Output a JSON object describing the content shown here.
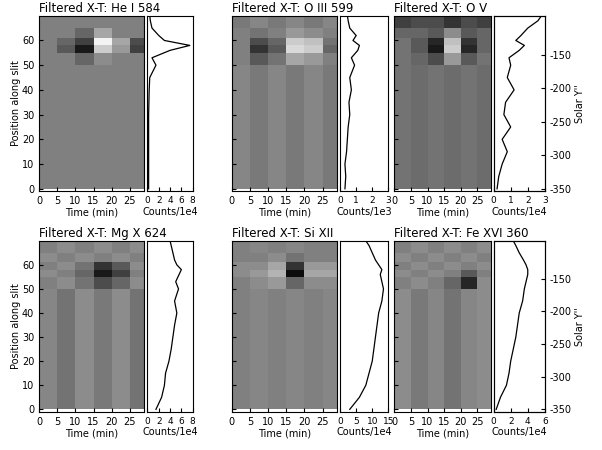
{
  "chart_data": [
    {
      "type": "heatmap",
      "title": "Filtered X-T: He I 584",
      "xlabel": "Time (min)",
      "ylabel": "Position along slit",
      "xlim": [
        0,
        29
      ],
      "xticks": [
        0,
        5,
        10,
        15,
        20,
        25
      ],
      "ylim": [
        -1,
        70
      ],
      "yticks": [
        0,
        10,
        20,
        30,
        40,
        50,
        60
      ],
      "x_edges": [
        0,
        5,
        10,
        15,
        20,
        25,
        29
      ],
      "y_edges": [
        0,
        50,
        55,
        58,
        61,
        65,
        70
      ],
      "cells_range": [
        -1,
        1
      ],
      "cells": [
        [
          0,
          0,
          0,
          0,
          0,
          0
        ],
        [
          0,
          0,
          -0.2,
          0.1,
          0,
          0
        ],
        [
          0,
          -0.3,
          -0.8,
          0.6,
          0.2,
          -0.5
        ],
        [
          0,
          -0.2,
          -0.5,
          0.9,
          0.3,
          -0.4
        ],
        [
          0,
          0,
          -0.2,
          0.3,
          0,
          0
        ],
        [
          0,
          0,
          0,
          0,
          0,
          0
        ]
      ],
      "profile": {
        "type": "line",
        "xlabel": "Counts/1e4",
        "xlim": [
          0,
          8
        ],
        "xticks": [
          0,
          2,
          4,
          6,
          8
        ],
        "y": [
          0,
          5,
          10,
          15,
          20,
          25,
          30,
          35,
          40,
          45,
          50,
          53,
          56,
          58,
          60,
          62,
          65,
          68,
          70
        ],
        "values": [
          0.2,
          0.2,
          0.2,
          0.2,
          0.2,
          0.2,
          0.2,
          0.25,
          0.3,
          0.4,
          1.5,
          0.8,
          4,
          7.5,
          3,
          2,
          0.8,
          0.5,
          0.4
        ]
      }
    },
    {
      "type": "heatmap",
      "title": "Filtered X-T: O III 599",
      "xlabel": "Time (min)",
      "tick_labels": "x",
      "xlim": [
        0,
        29
      ],
      "xticks": [
        0,
        5,
        10,
        15,
        20,
        25
      ],
      "ylim": [
        -1,
        70
      ],
      "yticks": [
        0,
        10,
        20,
        30,
        40,
        50,
        60
      ],
      "x_edges": [
        0,
        5,
        10,
        15,
        20,
        25,
        29
      ],
      "y_edges": [
        0,
        50,
        55,
        58,
        61,
        65,
        70
      ],
      "cells_range": [
        -1,
        1
      ],
      "cells": [
        [
          0.05,
          -0.05,
          0.05,
          -0.05,
          0.05,
          -0.05
        ],
        [
          0,
          -0.3,
          -0.1,
          0.3,
          0.2,
          0
        ],
        [
          0,
          -0.6,
          -0.3,
          0.7,
          0.6,
          -0.2
        ],
        [
          0,
          -0.4,
          -0.2,
          0.6,
          0.5,
          -0.1
        ],
        [
          0,
          -0.1,
          0,
          0.2,
          0.1,
          0
        ],
        [
          -0.05,
          0.05,
          -0.05,
          0.05,
          -0.05,
          0.05
        ]
      ],
      "profile": {
        "type": "line",
        "xlabel": "Counts/1e3",
        "xlim": [
          0,
          3
        ],
        "xticks": [
          0,
          1,
          2,
          3
        ],
        "y": [
          0,
          5,
          10,
          15,
          20,
          25,
          30,
          35,
          40,
          45,
          50,
          53,
          56,
          58,
          60,
          62,
          65,
          68,
          70
        ],
        "values": [
          0.3,
          0.35,
          0.3,
          0.4,
          0.45,
          0.5,
          0.6,
          0.55,
          0.7,
          0.6,
          0.9,
          0.7,
          1.1,
          1.2,
          0.8,
          1.0,
          0.6,
          0.5,
          0.45
        ]
      }
    },
    {
      "type": "heatmap",
      "title": "Filtered X-T: O V",
      "xlabel": "Time (min)",
      "tick_labels": "x",
      "xlim": [
        0,
        29
      ],
      "xticks": [
        0,
        5,
        10,
        15,
        20,
        25
      ],
      "ylim": [
        -1,
        70
      ],
      "yticks": [
        0,
        10,
        20,
        30,
        40,
        50,
        60
      ],
      "x_edges": [
        0,
        5,
        10,
        15,
        20,
        25,
        29
      ],
      "y_edges": [
        0,
        50,
        55,
        58,
        61,
        65,
        70
      ],
      "cells_range": [
        -1,
        1
      ],
      "cells": [
        [
          -0.1,
          -0.15,
          -0.1,
          -0.15,
          -0.1,
          -0.15
        ],
        [
          -0.1,
          -0.2,
          -0.4,
          0.2,
          -0.3,
          -0.1
        ],
        [
          -0.1,
          -0.3,
          -0.8,
          0.6,
          -0.7,
          -0.2
        ],
        [
          -0.1,
          -0.3,
          -0.7,
          0.5,
          -0.6,
          -0.2
        ],
        [
          -0.2,
          -0.2,
          -0.3,
          0.1,
          -0.3,
          -0.2
        ],
        [
          -0.5,
          -0.4,
          -0.4,
          -0.6,
          -0.4,
          -0.5
        ]
      ],
      "profile": {
        "type": "line",
        "xlabel": "Counts/1e4",
        "xlim": [
          0,
          3
        ],
        "xticks": [
          0,
          1,
          2,
          3
        ],
        "y": [
          0,
          5,
          10,
          15,
          20,
          25,
          30,
          35,
          40,
          45,
          50,
          53,
          56,
          58,
          60,
          62,
          65,
          68,
          70
        ],
        "values": [
          0.2,
          0.3,
          0.5,
          0.8,
          0.5,
          1.0,
          0.6,
          0.7,
          1.2,
          0.8,
          1.0,
          0.9,
          1.5,
          1.8,
          1.3,
          1.6,
          2.0,
          2.6,
          2.8
        ]
      },
      "y2label": "Solar Y''",
      "y2lim": [
        -354,
        -92
      ],
      "y2ticks": [
        -150,
        -200,
        -250,
        -300,
        -350
      ]
    },
    {
      "type": "heatmap",
      "title": "Filtered X-T: Mg X 624",
      "xlabel": "Time (min)",
      "ylabel": "Position along slit",
      "xlim": [
        0,
        29
      ],
      "xticks": [
        0,
        5,
        10,
        15,
        20,
        25
      ],
      "ylim": [
        -1,
        70
      ],
      "yticks": [
        0,
        10,
        20,
        30,
        40,
        50,
        60
      ],
      "x_edges": [
        0,
        5,
        10,
        15,
        20,
        25,
        29
      ],
      "y_edges": [
        0,
        50,
        55,
        58,
        61,
        65,
        70
      ],
      "cells_range": [
        -1,
        1
      ],
      "cells": [
        [
          0.05,
          -0.1,
          0.1,
          -0.05,
          0.1,
          -0.1
        ],
        [
          0,
          0.1,
          -0.1,
          -0.4,
          -0.2,
          0.1
        ],
        [
          0.1,
          0,
          -0.2,
          -0.8,
          -0.5,
          0
        ],
        [
          0,
          0.1,
          -0.1,
          -0.6,
          -0.3,
          0.1
        ],
        [
          0.1,
          0,
          0.1,
          0,
          0.1,
          0
        ],
        [
          0,
          0.1,
          0,
          0.1,
          0,
          0.1
        ]
      ],
      "profile": {
        "type": "line",
        "xlabel": "Counts/1e4",
        "xlim": [
          0,
          8
        ],
        "xticks": [
          0,
          2,
          4,
          6,
          8
        ],
        "y": [
          0,
          5,
          10,
          15,
          20,
          25,
          30,
          35,
          40,
          45,
          50,
          53,
          56,
          58,
          60,
          62,
          65,
          68,
          70
        ],
        "values": [
          1.5,
          2.5,
          3,
          3.2,
          3.8,
          4.2,
          4.5,
          4.8,
          5.2,
          4.8,
          5.5,
          5.0,
          5.6,
          6.0,
          5.2,
          4.8,
          4.5,
          4.2,
          4.0
        ]
      }
    },
    {
      "type": "heatmap",
      "title": "Filtered X-T: Si XII",
      "xlabel": "Time (min)",
      "tick_labels": "x",
      "xlim": [
        0,
        29
      ],
      "xticks": [
        0,
        5,
        10,
        15,
        20,
        25
      ],
      "ylim": [
        -1,
        70
      ],
      "yticks": [
        0,
        10,
        20,
        30,
        40,
        50,
        60
      ],
      "x_edges": [
        0,
        5,
        10,
        15,
        20,
        25,
        29
      ],
      "y_edges": [
        0,
        50,
        55,
        58,
        61,
        65,
        70
      ],
      "cells_range": [
        -1,
        1
      ],
      "cells": [
        [
          0,
          0.05,
          0,
          0.05,
          0,
          0.05
        ],
        [
          0,
          0.1,
          0.2,
          -0.2,
          0.1,
          0.1
        ],
        [
          0.1,
          0.2,
          0.4,
          -0.9,
          0.3,
          0.3
        ],
        [
          0.1,
          0.1,
          0.3,
          -0.6,
          0.2,
          0.2
        ],
        [
          0,
          0,
          0.1,
          -0.1,
          0,
          0
        ],
        [
          0,
          0.05,
          0,
          0.05,
          0,
          0
        ]
      ],
      "profile": {
        "type": "line",
        "xlabel": "Counts/1e4",
        "xlim": [
          0,
          15
        ],
        "xticks": [
          0,
          5,
          10,
          15
        ],
        "y": [
          0,
          5,
          10,
          15,
          20,
          25,
          30,
          35,
          40,
          45,
          50,
          53,
          56,
          58,
          60,
          62,
          65,
          68,
          70
        ],
        "values": [
          3,
          6,
          8,
          9,
          10,
          10.5,
          11,
          11.5,
          12,
          13,
          13.5,
          13,
          12.5,
          13,
          12,
          11,
          10,
          9,
          8
        ]
      }
    },
    {
      "type": "heatmap",
      "title": "Filtered X-T: Fe XVI 360",
      "xlabel": "Time (min)",
      "tick_labels": "x",
      "xlim": [
        0,
        29
      ],
      "xticks": [
        0,
        5,
        10,
        15,
        20,
        25
      ],
      "ylim": [
        -1,
        70
      ],
      "yticks": [
        0,
        10,
        20,
        30,
        40,
        50,
        60
      ],
      "x_edges": [
        0,
        5,
        10,
        15,
        20,
        25,
        29
      ],
      "y_edges": [
        0,
        50,
        55,
        58,
        61,
        65,
        70
      ],
      "cells_range": [
        -1,
        1
      ],
      "cells": [
        [
          0.1,
          -0.05,
          0.05,
          -0.1,
          0.05,
          0.1
        ],
        [
          0,
          0.1,
          0,
          -0.2,
          -0.7,
          0.1
        ],
        [
          0.1,
          0,
          0.1,
          0,
          -0.3,
          0
        ],
        [
          0,
          0.1,
          0,
          0.1,
          0,
          0.1
        ],
        [
          0.1,
          0,
          0.1,
          0,
          0.1,
          0
        ],
        [
          0,
          0.1,
          0,
          0.1,
          0,
          0.1
        ]
      ],
      "profile": {
        "type": "line",
        "xlabel": "Counts/1e4",
        "xlim": [
          0,
          6
        ],
        "xticks": [
          0,
          2,
          4,
          6
        ],
        "y": [
          0,
          5,
          10,
          15,
          20,
          25,
          30,
          35,
          40,
          45,
          50,
          53,
          56,
          58,
          60,
          62,
          65,
          68,
          70
        ],
        "values": [
          0.3,
          0.8,
          1.5,
          1.8,
          2.0,
          2.3,
          2.6,
          2.8,
          3.0,
          3.4,
          3.6,
          3.8,
          4.0,
          4.0,
          3.8,
          3.5,
          3.0,
          2.6,
          2.3
        ]
      },
      "y2label": "Solar Y''",
      "y2lim": [
        -354,
        -92
      ],
      "y2ticks": [
        -150,
        -200,
        -250,
        -300,
        -350
      ]
    }
  ]
}
